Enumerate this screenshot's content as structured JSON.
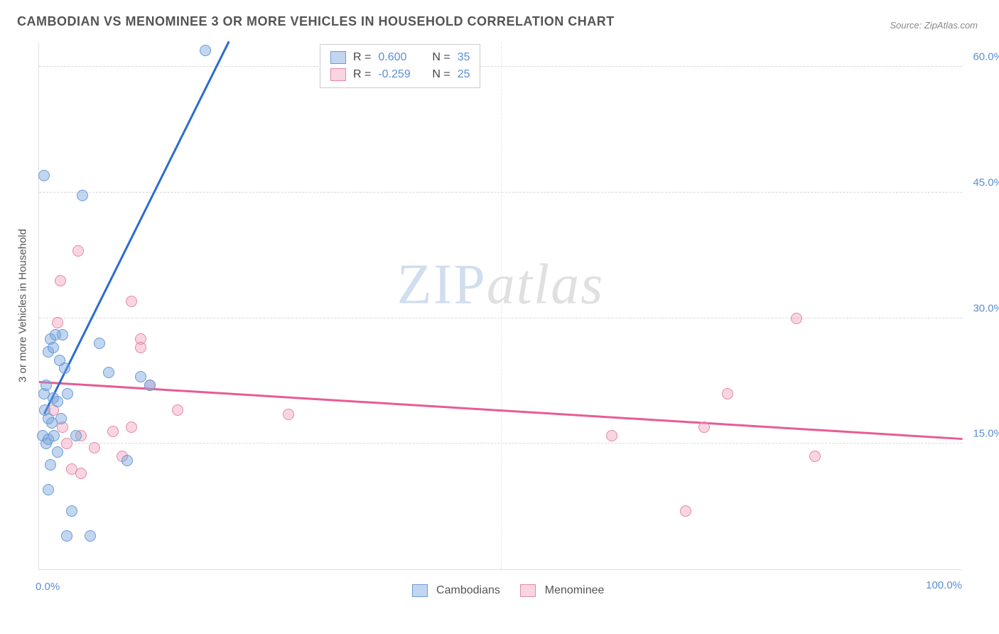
{
  "title": "CAMBODIAN VS MENOMINEE 3 OR MORE VEHICLES IN HOUSEHOLD CORRELATION CHART",
  "source": "Source: ZipAtlas.com",
  "ylabel": "3 or more Vehicles in Household",
  "chart": {
    "type": "scatter-correlation",
    "xlim": [
      0,
      100
    ],
    "ylim": [
      0,
      63
    ],
    "x_origin_label": "0.0%",
    "x_max_label": "100.0%",
    "y_ticks": [
      {
        "v": 15,
        "label": "15.0%"
      },
      {
        "v": 30,
        "label": "30.0%"
      },
      {
        "v": 45,
        "label": "45.0%"
      },
      {
        "v": 60,
        "label": "60.0%"
      }
    ],
    "x_grid": [
      50
    ],
    "background_color": "#ffffff",
    "grid_color": "#d8d8d8",
    "tick_color": "#5a8fd6",
    "tick_fontsize": 15,
    "label_fontsize": 15,
    "point_radius": 8,
    "series": {
      "cambodians": {
        "label": "Cambodians",
        "fill": "rgba(120,165,220,0.45)",
        "stroke": "#6a9cd6",
        "trend_color": "#2b6cd1",
        "trend_dash_color": "#6a9cd6",
        "R": "0.600",
        "N": "35",
        "trend": {
          "x1": 0.5,
          "y1": 18.5,
          "x2": 20.5,
          "y2": 63,
          "dash_extend": 4
        },
        "points": [
          [
            0.5,
            47
          ],
          [
            4.7,
            44.7
          ],
          [
            18,
            62
          ],
          [
            1.2,
            27.5
          ],
          [
            1.8,
            28
          ],
          [
            1.0,
            26
          ],
          [
            2.5,
            28
          ],
          [
            1.5,
            26.5
          ],
          [
            0.5,
            21
          ],
          [
            1.5,
            20.5
          ],
          [
            2.0,
            20
          ],
          [
            0.8,
            22
          ],
          [
            2.2,
            25
          ],
          [
            1.0,
            18
          ],
          [
            0.6,
            19
          ],
          [
            1.4,
            17.5
          ],
          [
            2.4,
            18
          ],
          [
            0.4,
            16
          ],
          [
            1.0,
            15.5
          ],
          [
            1.6,
            16
          ],
          [
            0.8,
            15
          ],
          [
            7.5,
            23.5
          ],
          [
            6.5,
            27
          ],
          [
            11,
            23
          ],
          [
            12,
            22
          ],
          [
            9.5,
            13
          ],
          [
            3.5,
            7
          ],
          [
            3.0,
            4
          ],
          [
            5.5,
            4
          ],
          [
            1,
            9.5
          ],
          [
            2.8,
            24
          ],
          [
            3.1,
            21
          ],
          [
            2.0,
            14
          ],
          [
            4.0,
            16
          ],
          [
            1.2,
            12.5
          ]
        ]
      },
      "menominee": {
        "label": "Menominee",
        "fill": "rgba(240,150,180,0.40)",
        "stroke": "#e08aa8",
        "trend_color": "#e75c94",
        "R": "-0.259",
        "N": "25",
        "trend": {
          "x1": 0,
          "y1": 22.3,
          "x2": 100,
          "y2": 15.5
        },
        "points": [
          [
            4.2,
            38
          ],
          [
            2.3,
            34.5
          ],
          [
            2.0,
            29.5
          ],
          [
            10,
            32
          ],
          [
            11,
            27.5
          ],
          [
            11,
            26.5
          ],
          [
            12,
            22
          ],
          [
            10,
            17
          ],
          [
            15,
            19
          ],
          [
            27,
            18.5
          ],
          [
            4.5,
            16
          ],
          [
            8,
            16.5
          ],
          [
            9,
            13.5
          ],
          [
            3.5,
            12
          ],
          [
            4.5,
            11.5
          ],
          [
            62,
            16
          ],
          [
            72,
            17
          ],
          [
            74.5,
            21
          ],
          [
            82,
            30
          ],
          [
            70,
            7
          ],
          [
            84,
            13.5
          ],
          [
            1.5,
            19
          ],
          [
            2.5,
            17
          ],
          [
            3.0,
            15
          ],
          [
            6,
            14.5
          ]
        ]
      }
    }
  },
  "watermark": {
    "part1": "ZIP",
    "part2": "atlas"
  },
  "legend_bottom": {
    "items": [
      {
        "key": "cambodians"
      },
      {
        "key": "menominee"
      }
    ]
  }
}
